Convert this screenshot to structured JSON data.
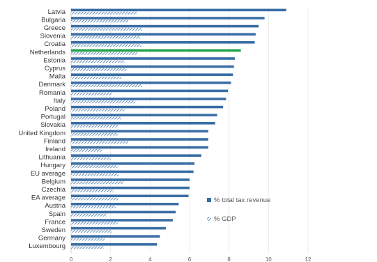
{
  "chart_data": {
    "type": "bar",
    "orientation": "horizontal",
    "categories": [
      "Latvia",
      "Bulgaria",
      "Greece",
      "Slovenia",
      "Croatia",
      "Netherlands",
      "Estonia",
      "Cyprus",
      "Malta",
      "Denmark",
      "Romania",
      "Italy",
      "Poland",
      "Portugal",
      "Slovakia",
      "United Kingdom",
      "Finland",
      "Ireland",
      "Lithuania",
      "Hungary",
      "EU average",
      "Belgium",
      "Czechia",
      "EA average",
      "Austria",
      "Spain",
      "France",
      "Sweden",
      "Germany",
      "Luxembourg"
    ],
    "series": [
      {
        "name": "% total tax revenue",
        "color": "#3a6ea5",
        "values": [
          10.9,
          9.8,
          9.5,
          9.35,
          9.3,
          8.6,
          8.3,
          8.25,
          8.2,
          8.1,
          7.95,
          7.85,
          7.7,
          7.4,
          7.3,
          6.95,
          6.95,
          6.95,
          6.6,
          6.25,
          6.2,
          6.0,
          6.0,
          5.95,
          5.45,
          5.3,
          5.15,
          4.8,
          4.5,
          4.35
        ]
      },
      {
        "name": "% GDP",
        "color": "#3a6ea5",
        "pattern": "hatched",
        "values": [
          3.35,
          2.9,
          3.6,
          3.5,
          3.55,
          3.35,
          2.7,
          2.8,
          2.55,
          3.6,
          2.05,
          3.25,
          2.7,
          2.55,
          2.4,
          2.35,
          2.9,
          1.55,
          2.0,
          2.35,
          2.4,
          2.65,
          2.15,
          2.4,
          2.25,
          1.8,
          2.35,
          2.05,
          1.7,
          1.65
        ]
      }
    ],
    "highlight": {
      "category": "Netherlands",
      "color": "#22a34a"
    },
    "xlim": [
      0,
      12
    ],
    "xticks": [
      "0",
      "2",
      "4",
      "6",
      "8",
      "10",
      "12"
    ],
    "grid": true,
    "legend_position": "right-middle",
    "title": "",
    "xlabel": "",
    "ylabel": ""
  }
}
